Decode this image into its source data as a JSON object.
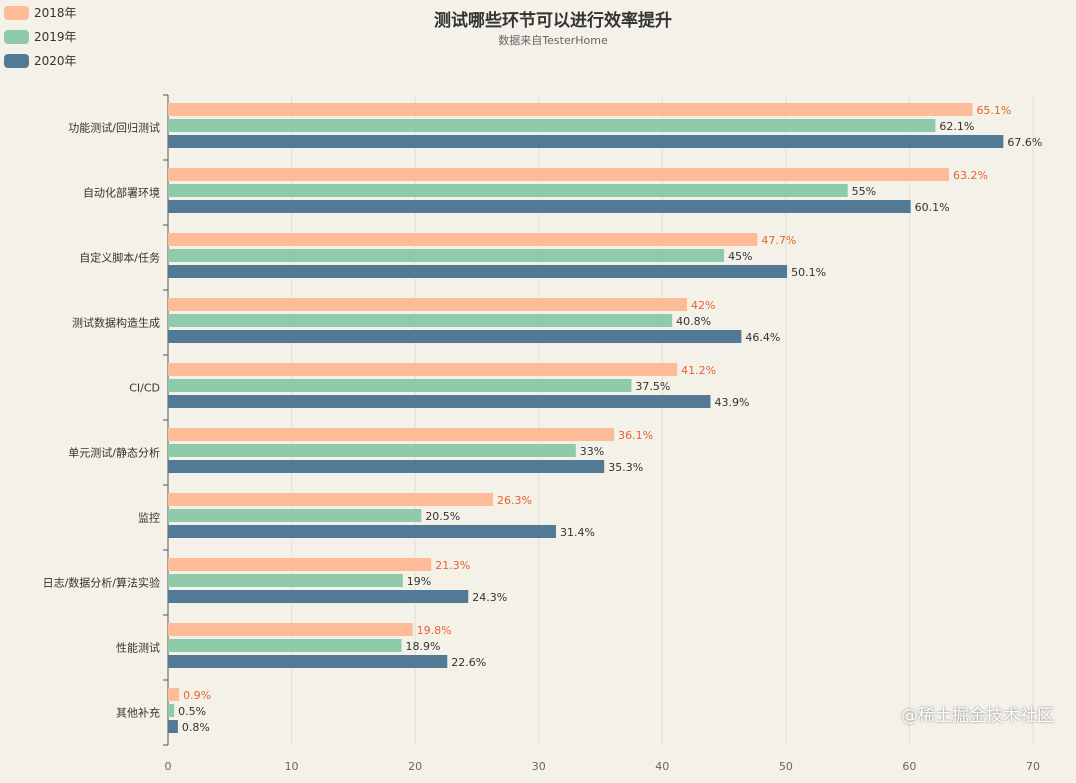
{
  "chart_data": {
    "type": "bar",
    "orientation": "horizontal",
    "title": "测试哪些环节可以进行效率提升",
    "subtitle": "数据来自TesterHome",
    "categories": [
      "功能测试/回归测试",
      "自动化部署环境",
      "自定义脚本/任务",
      "测试数据构造生成",
      "CI/CD",
      "单元测试/静态分析",
      "监控",
      "日志/数据分析/算法实验",
      "性能测试",
      "其他补充"
    ],
    "series": [
      {
        "name": "2018年",
        "color": "#fdbb98",
        "label_color": "#e8622c",
        "values": [
          65.1,
          63.2,
          47.7,
          42,
          41.2,
          36.1,
          26.3,
          21.3,
          19.8,
          0.9
        ]
      },
      {
        "name": "2019年",
        "color": "#8fcaaa",
        "label_color": "#333333",
        "values": [
          62.1,
          55,
          45,
          40.8,
          37.5,
          33,
          20.5,
          19,
          18.9,
          0.5
        ]
      },
      {
        "name": "2020年",
        "color": "#527a96",
        "label_color": "#333333",
        "values": [
          67.6,
          60.1,
          50.1,
          46.4,
          43.9,
          35.3,
          31.4,
          24.3,
          22.6,
          0.8
        ]
      }
    ],
    "label_suffix": "%",
    "xlim": [
      0,
      70
    ],
    "xticks": [
      "0",
      "10",
      "20",
      "30",
      "40",
      "50",
      "60",
      "70"
    ],
    "grid": true,
    "legend": "top-left"
  },
  "watermark": "@稀土掘金技术社区"
}
